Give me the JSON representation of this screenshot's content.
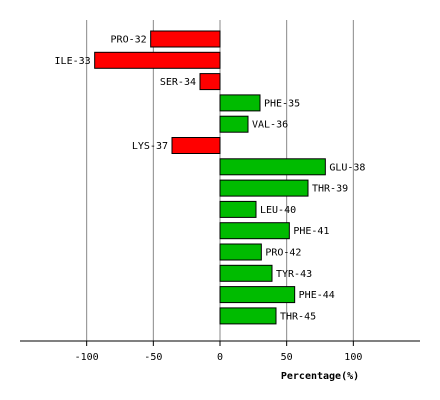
{
  "chart_data": {
    "type": "bar",
    "orientation": "horizontal",
    "xlabel": "Percentage(%)",
    "xlim": [
      -150,
      150
    ],
    "xticks": [
      -100,
      -50,
      0,
      50,
      100
    ],
    "grid": true,
    "legend": "none",
    "colors": {
      "positive": "#00bb00",
      "negative": "#ff0000",
      "outline": "#000000",
      "grid": "#888888"
    },
    "categories": [
      "PRO-32",
      "ILE-33",
      "SER-34",
      "PHE-35",
      "VAL-36",
      "LYS-37",
      "GLU-38",
      "THR-39",
      "LEU-40",
      "PHE-41",
      "PRO-42",
      "TYR-43",
      "PHE-44",
      "THR-45"
    ],
    "values": [
      -52,
      -94,
      -15,
      30,
      21,
      -36,
      79,
      66,
      27,
      52,
      31,
      39,
      56,
      42
    ]
  }
}
